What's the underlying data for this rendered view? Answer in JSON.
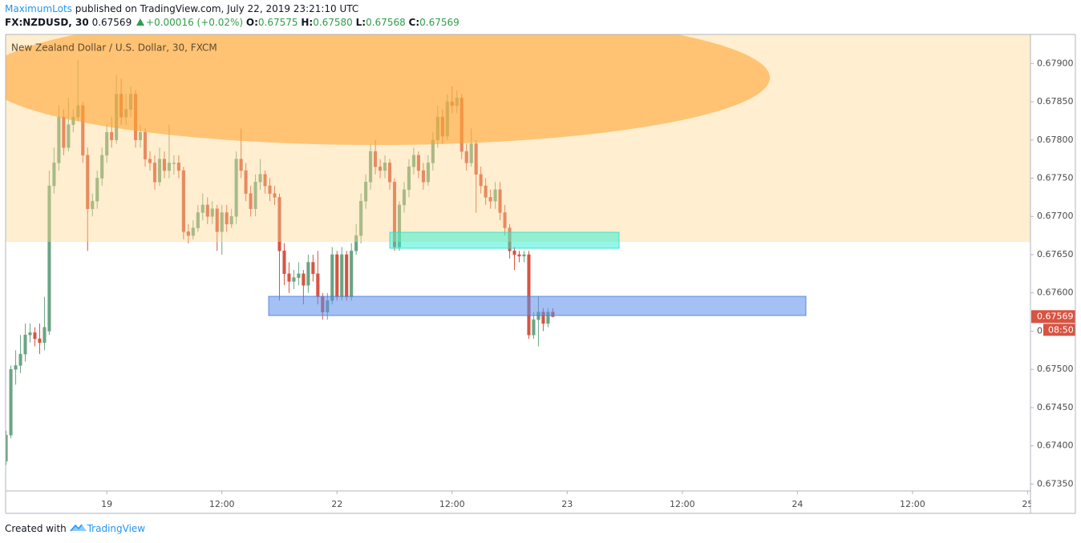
{
  "header": {
    "author": "MaximumLots",
    "published": "published on TradingView.com, July 22, 2019 23:21:10 UTC",
    "symbol": "FX:NZDUSD, 30",
    "price": "0.67569",
    "change": "+0.00016 (+0.02%)",
    "quote": [
      {
        "label": "O:",
        "value": "0.67575"
      },
      {
        "label": "H:",
        "value": "0.67580"
      },
      {
        "label": "L:",
        "value": "0.67568"
      },
      {
        "label": "C:",
        "value": "0.67569"
      }
    ]
  },
  "footer": {
    "text": "Created with",
    "brand": "TradingView"
  },
  "chart_data": {
    "type": "candlestick",
    "title": "New Zealand Dollar / U.S. Dollar, 30, FXCM",
    "up_color": "#6ba583",
    "down_color": "#d75442",
    "grid": false,
    "xlim": [
      -21.1,
      192.6
    ],
    "ylim": [
      0.67341,
      0.67938
    ],
    "xticks": [
      {
        "value": 0,
        "label": "19"
      },
      {
        "value": 24,
        "label": "12:00"
      },
      {
        "value": 48,
        "label": "22"
      },
      {
        "value": 72,
        "label": "12:00"
      },
      {
        "value": 96,
        "label": "23"
      },
      {
        "value": 120,
        "label": "12:00"
      },
      {
        "value": 144,
        "label": "24"
      },
      {
        "value": 168,
        "label": "12:00"
      },
      {
        "value": 192,
        "label": "25"
      }
    ],
    "yticks": [
      {
        "value": 0.6735,
        "label": "0.67350"
      },
      {
        "value": 0.674,
        "label": "0.67400"
      },
      {
        "value": 0.6745,
        "label": "0.67450"
      },
      {
        "value": 0.675,
        "label": "0.67500"
      },
      {
        "value": 0.6755,
        "label": "0.67550"
      },
      {
        "value": 0.676,
        "label": "0.67600"
      },
      {
        "value": 0.6765,
        "label": "0.67650"
      },
      {
        "value": 0.677,
        "label": "0.67700"
      },
      {
        "value": 0.6775,
        "label": "0.67750"
      },
      {
        "value": 0.678,
        "label": "0.67800"
      },
      {
        "value": 0.6785,
        "label": "0.67850"
      },
      {
        "value": 0.679,
        "label": "0.67900"
      }
    ],
    "last_price": {
      "value": 0.67569,
      "label": "0.67569"
    },
    "countdown": "08:50",
    "x": [
      -21,
      -20,
      -19,
      -18,
      -17,
      -16,
      -15,
      -14,
      -13,
      -12,
      -11,
      -10,
      -9,
      -8,
      -7,
      -6,
      -5,
      -4,
      -3,
      -2,
      -1,
      0,
      1,
      2,
      3,
      4,
      5,
      6,
      7,
      8,
      9,
      10,
      11,
      12,
      13,
      14,
      15,
      16,
      17,
      18,
      19,
      20,
      21,
      22,
      23,
      24,
      25,
      26,
      27,
      28,
      29,
      30,
      31,
      32,
      33,
      34,
      35,
      36,
      37,
      38,
      39,
      40,
      41,
      42,
      43,
      44,
      45,
      46,
      47,
      48,
      49,
      50,
      51,
      52,
      53,
      54,
      55,
      56,
      57,
      58,
      59,
      60,
      61,
      62,
      63,
      64,
      65,
      66,
      67,
      68,
      69,
      70,
      71,
      72,
      73,
      74,
      75,
      76,
      77,
      78,
      79,
      80,
      81,
      82,
      83,
      84,
      85,
      86,
      87,
      88,
      89,
      90,
      91,
      92,
      93
    ],
    "open": [
      0.6738,
      0.67414,
      0.675,
      0.67505,
      0.6752,
      0.67545,
      0.67548,
      0.6754,
      0.67535,
      0.6755,
      0.6774,
      0.6777,
      0.6783,
      0.6779,
      0.6782,
      0.6783,
      0.67845,
      0.6778,
      0.6771,
      0.6772,
      0.6775,
      0.6778,
      0.6781,
      0.678,
      0.6786,
      0.6783,
      0.6784,
      0.6786,
      0.678,
      0.6781,
      0.67775,
      0.6777,
      0.67745,
      0.67775,
      0.6776,
      0.6777,
      0.6777,
      0.6776,
      0.6768,
      0.67675,
      0.67685,
      0.67705,
      0.67715,
      0.677,
      0.6771,
      0.6768,
      0.67705,
      0.6769,
      0.677,
      0.67775,
      0.6776,
      0.6773,
      0.6771,
      0.67745,
      0.67755,
      0.6774,
      0.6773,
      0.67725,
      0.67655,
      0.67625,
      0.67615,
      0.6762,
      0.67625,
      0.6761,
      0.6764,
      0.67625,
      0.67595,
      0.67575,
      0.6759,
      0.6765,
      0.67595,
      0.6765,
      0.67595,
      0.67655,
      0.67675,
      0.6772,
      0.67745,
      0.67785,
      0.67765,
      0.6776,
      0.6777,
      0.67745,
      0.6766,
      0.67715,
      0.67735,
      0.67765,
      0.6778,
      0.6776,
      0.67745,
      0.6777,
      0.678,
      0.6783,
      0.67805,
      0.6785,
      0.67845,
      0.67855,
      0.67785,
      0.6777,
      0.67795,
      0.67755,
      0.6774,
      0.67725,
      0.6772,
      0.67735,
      0.67705,
      0.67685,
      0.67655,
      0.6765,
      0.67648,
      0.6765,
      0.67545,
      0.67565,
      0.67575,
      0.6756,
      0.67575
    ],
    "high": [
      0.6742,
      0.67505,
      0.67525,
      0.67545,
      0.6756,
      0.6756,
      0.67555,
      0.6756,
      0.67595,
      0.6776,
      0.6779,
      0.67845,
      0.6784,
      0.67855,
      0.6784,
      0.67905,
      0.6785,
      0.6779,
      0.6773,
      0.6776,
      0.6779,
      0.6782,
      0.6783,
      0.67885,
      0.6788,
      0.6786,
      0.6787,
      0.67865,
      0.6782,
      0.67815,
      0.67785,
      0.6778,
      0.6779,
      0.67785,
      0.6782,
      0.6778,
      0.6778,
      0.67765,
      0.6769,
      0.67695,
      0.67715,
      0.6773,
      0.67725,
      0.6772,
      0.67715,
      0.67715,
      0.67715,
      0.6771,
      0.67785,
      0.67815,
      0.6777,
      0.6774,
      0.67755,
      0.67775,
      0.6776,
      0.6775,
      0.6774,
      0.6773,
      0.67665,
      0.6764,
      0.6763,
      0.6764,
      0.6763,
      0.6765,
      0.6765,
      0.67655,
      0.676,
      0.676,
      0.6766,
      0.67655,
      0.6766,
      0.67655,
      0.67665,
      0.6769,
      0.6773,
      0.67755,
      0.67795,
      0.678,
      0.67775,
      0.6778,
      0.67775,
      0.6775,
      0.6772,
      0.67745,
      0.67775,
      0.6779,
      0.67785,
      0.6777,
      0.6778,
      0.6781,
      0.67845,
      0.6784,
      0.6786,
      0.6787,
      0.67865,
      0.6786,
      0.67795,
      0.67815,
      0.678,
      0.67765,
      0.6775,
      0.67735,
      0.67745,
      0.67745,
      0.67715,
      0.6769,
      0.6766,
      0.67655,
      0.67655,
      0.67655,
      0.67575,
      0.67595,
      0.6758,
      0.6758,
      0.6758
    ],
    "low": [
      0.67375,
      0.6741,
      0.6748,
      0.67495,
      0.6751,
      0.67535,
      0.6753,
      0.6752,
      0.67525,
      0.67545,
      0.6773,
      0.6776,
      0.6778,
      0.67785,
      0.6781,
      0.67825,
      0.6777,
      0.67655,
      0.677,
      0.6771,
      0.6774,
      0.6777,
      0.6779,
      0.67795,
      0.6782,
      0.6782,
      0.6783,
      0.6779,
      0.6779,
      0.67765,
      0.6776,
      0.67735,
      0.6774,
      0.6775,
      0.6775,
      0.67755,
      0.6775,
      0.6767,
      0.67665,
      0.6767,
      0.6768,
      0.67695,
      0.6769,
      0.6769,
      0.67655,
      0.6765,
      0.6768,
      0.67685,
      0.6769,
      0.6775,
      0.6772,
      0.677,
      0.677,
      0.67735,
      0.6773,
      0.6772,
      0.67715,
      0.6759,
      0.6761,
      0.676,
      0.67605,
      0.6761,
      0.67585,
      0.676,
      0.67615,
      0.67585,
      0.67565,
      0.67565,
      0.67585,
      0.6759,
      0.6759,
      0.6759,
      0.6759,
      0.6765,
      0.67665,
      0.6771,
      0.67735,
      0.67755,
      0.6775,
      0.6775,
      0.67735,
      0.67655,
      0.67655,
      0.67705,
      0.67725,
      0.67755,
      0.6775,
      0.67735,
      0.6774,
      0.6776,
      0.6779,
      0.67795,
      0.678,
      0.67835,
      0.67835,
      0.67775,
      0.6776,
      0.67765,
      0.67705,
      0.6773,
      0.67715,
      0.6771,
      0.6771,
      0.67695,
      0.67675,
      0.67645,
      0.6763,
      0.6764,
      0.6764,
      0.6754,
      0.6754,
      0.6753,
      0.6755,
      0.67555,
      0.67568
    ],
    "close": [
      0.67414,
      0.675,
      0.67505,
      0.6752,
      0.67545,
      0.67548,
      0.6754,
      0.67535,
      0.67555,
      0.6774,
      0.6777,
      0.6783,
      0.6779,
      0.6782,
      0.6783,
      0.67845,
      0.6778,
      0.6771,
      0.6772,
      0.6775,
      0.6778,
      0.6781,
      0.678,
      0.6786,
      0.6783,
      0.6784,
      0.6786,
      0.678,
      0.6781,
      0.67775,
      0.6777,
      0.67745,
      0.67775,
      0.6776,
      0.6777,
      0.6777,
      0.6776,
      0.6768,
      0.67675,
      0.67685,
      0.67705,
      0.67715,
      0.677,
      0.6771,
      0.6768,
      0.67705,
      0.6769,
      0.677,
      0.67775,
      0.6776,
      0.6773,
      0.6771,
      0.67745,
      0.67755,
      0.6774,
      0.6773,
      0.67725,
      0.67655,
      0.67625,
      0.67615,
      0.6762,
      0.67625,
      0.6761,
      0.6764,
      0.67625,
      0.67595,
      0.67575,
      0.6759,
      0.6765,
      0.67595,
      0.6765,
      0.67595,
      0.67655,
      0.67675,
      0.6772,
      0.67745,
      0.67785,
      0.67765,
      0.6776,
      0.6777,
      0.67745,
      0.6766,
      0.67715,
      0.67735,
      0.67765,
      0.6778,
      0.6776,
      0.67745,
      0.6777,
      0.678,
      0.6783,
      0.67805,
      0.6785,
      0.67845,
      0.67855,
      0.67785,
      0.6777,
      0.67795,
      0.67755,
      0.6774,
      0.67725,
      0.6772,
      0.67735,
      0.67705,
      0.67685,
      0.67655,
      0.6765,
      0.67648,
      0.6765,
      0.67545,
      0.67565,
      0.67575,
      0.6756,
      0.67575,
      0.67569
    ]
  }
}
